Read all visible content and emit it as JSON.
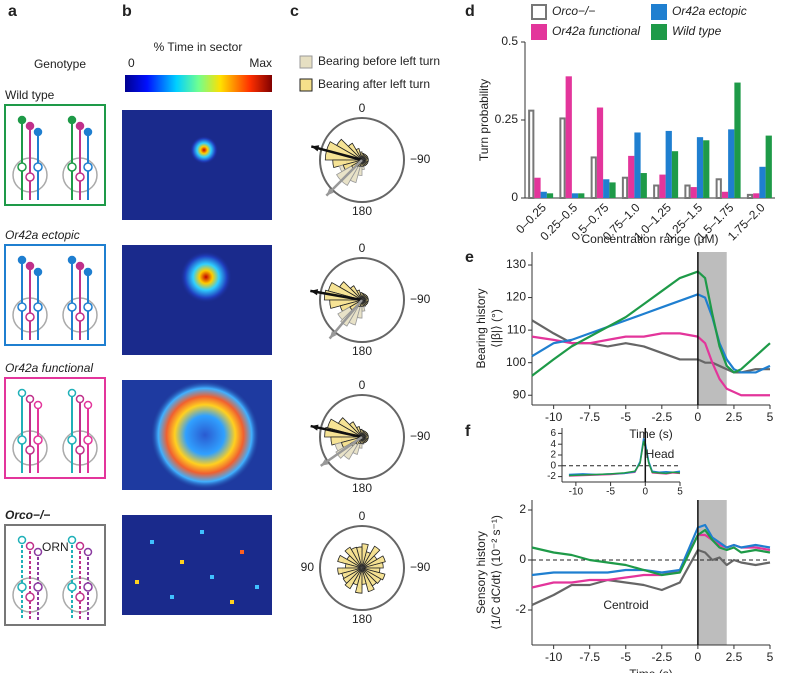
{
  "panel_letters": [
    "a",
    "b",
    "c",
    "d",
    "e",
    "f"
  ],
  "genotype": {
    "heading": "Genotype",
    "rows": [
      "Wild type",
      "Or42a ectopic",
      "Or42a functional",
      "Orco−/−"
    ],
    "orn_label": "ORN"
  },
  "heatmap": {
    "title": "% Time in sector",
    "min_label": "0",
    "max_label": "Max"
  },
  "rose": {
    "legend": [
      "Bearing before left turn",
      "Bearing after left turn"
    ],
    "labels": {
      "top": "0",
      "right": "−90",
      "bottom": "180",
      "left": "90"
    }
  },
  "chart_data": [
    {
      "type": "bar",
      "ylabel": "Turn probability",
      "xlabel": "Concentration range (μM)",
      "categories": [
        "0–0.25",
        "0.25–0.5",
        "0.5–0.75",
        "0.75–1.0",
        "1.0–1.25",
        "1.25–1.5",
        "1.5–1.75",
        "1.75–2.0"
      ],
      "ylim": [
        0,
        0.5
      ],
      "yticks": [
        0,
        0.25,
        0.5
      ],
      "series": [
        {
          "name": "Orco−/−",
          "color": "#777777",
          "outline": true,
          "values": [
            0.28,
            0.255,
            0.13,
            0.065,
            0.04,
            0.04,
            0.06,
            0.01
          ]
        },
        {
          "name": "Or42a functional",
          "color": "#e3359b",
          "values": [
            0.065,
            0.39,
            0.29,
            0.135,
            0.075,
            0.035,
            0.02,
            0.015
          ]
        },
        {
          "name": "Or42a ectopic",
          "color": "#1f7fd0",
          "values": [
            0.02,
            0.015,
            0.06,
            0.21,
            0.215,
            0.195,
            0.22,
            0.1
          ]
        },
        {
          "name": "Wild type",
          "color": "#1e9a48",
          "values": [
            0.015,
            0.015,
            0.05,
            0.08,
            0.15,
            0.185,
            0.37,
            0.2
          ]
        }
      ]
    },
    {
      "type": "line",
      "xlabel": "Time (s)",
      "ylabel": [
        "Bearing history",
        "⟨|β|⟩ (°)"
      ],
      "xlim": [
        -11.5,
        5
      ],
      "xticks": [
        -10,
        -7.5,
        -5,
        -2.5,
        0,
        2.5,
        5
      ],
      "ylim": [
        87,
        134
      ],
      "yticks": [
        90,
        100,
        110,
        120,
        130
      ],
      "shade": [
        0,
        2
      ],
      "vline": 0,
      "x": [
        -11.5,
        -10,
        -8.75,
        -7.5,
        -6.25,
        -5,
        -3.75,
        -2.5,
        -1.25,
        0,
        0.5,
        1,
        1.5,
        2,
        2.5,
        3,
        4,
        5
      ],
      "series": [
        {
          "name": "Orco−/−",
          "color": "#666666",
          "values": [
            113,
            109,
            106,
            106,
            105,
            106,
            105,
            103,
            101,
            101,
            100,
            100,
            99,
            98,
            97,
            97,
            98,
            98
          ]
        },
        {
          "name": "Or42a functional",
          "color": "#e3359b",
          "values": [
            108,
            107,
            106,
            106,
            107,
            108,
            108,
            109,
            109,
            108,
            106,
            100,
            95,
            92,
            91,
            90,
            90,
            90
          ]
        },
        {
          "name": "Or42a ectopic",
          "color": "#1f7fd0",
          "values": [
            102,
            106,
            107,
            109,
            111,
            113,
            115,
            117,
            119,
            121,
            120,
            114,
            106,
            101,
            98,
            97,
            97,
            99
          ]
        },
        {
          "name": "Wild type",
          "color": "#1e9a48",
          "values": [
            96,
            101,
            105,
            108,
            111,
            114,
            118,
            122,
            126,
            128,
            126,
            115,
            105,
            99,
            97,
            98,
            102,
            106
          ]
        }
      ]
    },
    {
      "type": "line",
      "xlabel": "Time (s)",
      "ylabel": [
        "Sensory history",
        "⟨1/C dC/dt⟩ (10⁻² s⁻¹)"
      ],
      "annotation": "Centroid",
      "xlim": [
        -11.5,
        5
      ],
      "xticks": [
        -10,
        -7.5,
        -5,
        -2.5,
        0,
        2.5,
        5
      ],
      "ylim": [
        -3.4,
        2.4
      ],
      "yticks": [
        -2,
        0,
        2
      ],
      "shade": [
        0,
        2
      ],
      "vline": 0,
      "hline": 0,
      "x": [
        -11.5,
        -10,
        -8.75,
        -7.5,
        -6.25,
        -5,
        -3.75,
        -2.5,
        -1.25,
        0,
        0.5,
        1,
        1.5,
        2,
        2.5,
        3,
        4,
        5
      ],
      "series": [
        {
          "name": "Orco−/−",
          "color": "#666666",
          "values": [
            -1.8,
            -1.4,
            -1.0,
            -1.0,
            -0.8,
            -0.9,
            -1.0,
            -1.2,
            -0.9,
            0.4,
            0.3,
            0.0,
            0.1,
            -0.2,
            0.0,
            -0.1,
            -0.2,
            -0.1
          ]
        },
        {
          "name": "Or42a functional",
          "color": "#e3359b",
          "values": [
            -1.1,
            -0.9,
            -0.9,
            -0.8,
            -0.8,
            -0.7,
            -0.6,
            -0.6,
            -0.4,
            1.0,
            1.0,
            0.8,
            0.6,
            0.5,
            0.6,
            0.5,
            0.5,
            0.4
          ]
        },
        {
          "name": "Or42a ectopic",
          "color": "#1f7fd0",
          "values": [
            -0.6,
            -0.5,
            -0.5,
            -0.5,
            -0.5,
            -0.4,
            -0.4,
            -0.5,
            -0.4,
            1.3,
            1.4,
            0.9,
            0.7,
            0.5,
            0.6,
            0.5,
            0.6,
            0.5
          ]
        },
        {
          "name": "Wild type",
          "color": "#1e9a48",
          "values": [
            0.5,
            0.3,
            0.2,
            0.0,
            -0.1,
            -0.2,
            -0.4,
            -0.6,
            -0.5,
            1.0,
            1.2,
            0.8,
            0.5,
            0.4,
            0.5,
            0.3,
            0.4,
            0.3
          ]
        }
      ],
      "inset": {
        "annotation": "Head",
        "xlim": [
          -12,
          5
        ],
        "xticks": [
          -10,
          -5,
          0,
          5
        ],
        "ylim": [
          -3,
          7
        ],
        "yticks": [
          -2,
          0,
          2,
          4,
          6
        ],
        "vline": 0,
        "hline": 0,
        "x": [
          -11,
          -9,
          -7,
          -5,
          -3,
          -1.5,
          -0.75,
          -0.25,
          0,
          0.5,
          1,
          2,
          3,
          4,
          5
        ],
        "series": [
          {
            "name": "Or42a functional",
            "color": "#e3359b",
            "values": [
              -1.9,
              -1.8,
              -1.7,
              -1.6,
              -1.4,
              -1.2,
              0.6,
              4.5,
              3.8,
              0.6,
              -1.3,
              -1.4,
              -1.5,
              -1.3,
              -1.4
            ]
          },
          {
            "name": "Or42a ectopic",
            "color": "#1f7fd0",
            "values": [
              -1.6,
              -1.5,
              -1.6,
              -1.5,
              -1.4,
              -1.1,
              0.8,
              5,
              4.2,
              0.8,
              -1.0,
              -1.2,
              -1.1,
              -1.2,
              -1.0
            ]
          },
          {
            "name": "Wild type",
            "color": "#1e9a48",
            "values": [
              -1.8,
              -1.7,
              -1.6,
              -1.5,
              -1.3,
              -1,
              0.5,
              4.5,
              3.5,
              0.5,
              -1.2,
              -1.3,
              -1.4,
              -1.2,
              -1.3
            ]
          }
        ]
      }
    }
  ]
}
